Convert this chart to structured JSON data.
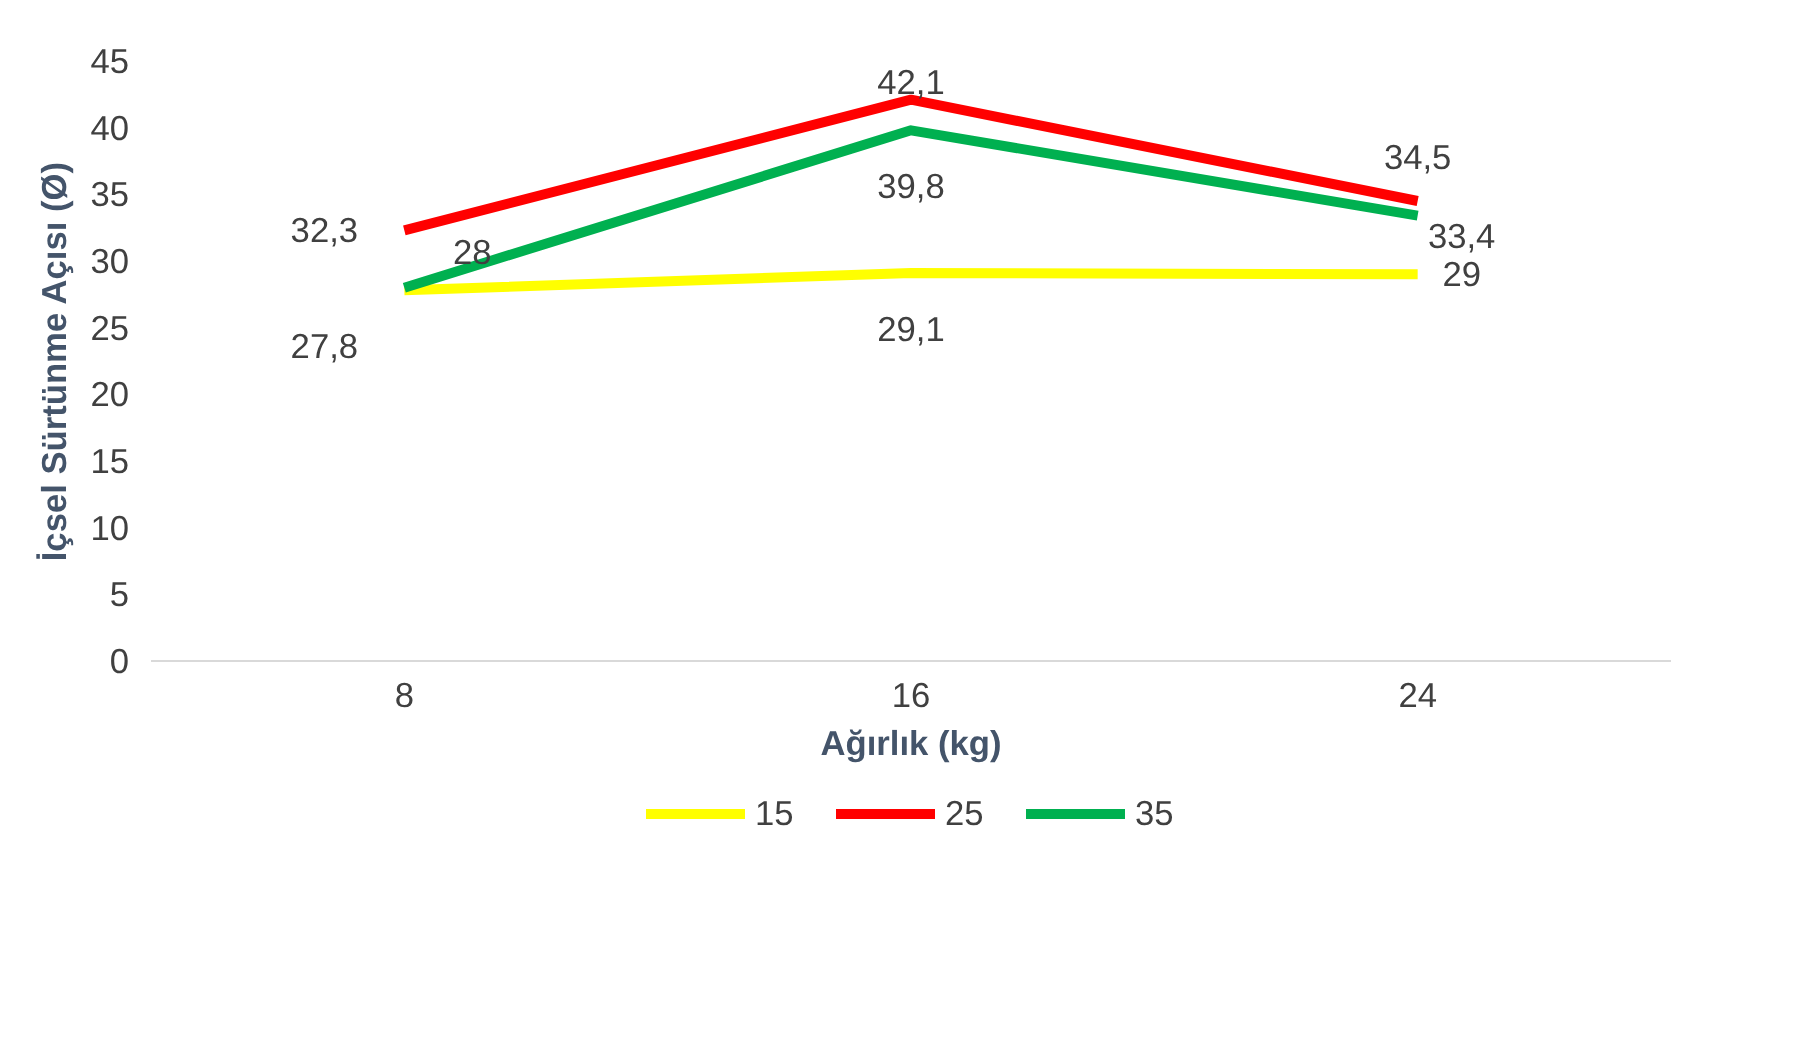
{
  "chart_data": {
    "type": "line",
    "xlabel": "Ağırlık (kg)",
    "ylabel": "İçsel Sürtünme Açısı (Ø)",
    "categories": [
      "8",
      "16",
      "24"
    ],
    "ylim": [
      0,
      45
    ],
    "yticks": [
      0,
      5,
      10,
      15,
      20,
      25,
      30,
      35,
      40,
      45
    ],
    "grid": false,
    "legend": "bottom",
    "marker": "none",
    "line_style": "solid",
    "series": [
      {
        "name": "15",
        "color": "#ffff00",
        "values": [
          27.8,
          29.1,
          29
        ],
        "value_labels": [
          "27,8",
          "29,1",
          "29"
        ]
      },
      {
        "name": "25",
        "color": "#ff0000",
        "values": [
          32.3,
          42.1,
          34.5
        ],
        "value_labels": [
          "32,3",
          "42,1",
          "34,5"
        ]
      },
      {
        "name": "35",
        "color": "#00b050",
        "values": [
          28,
          39.8,
          33.4
        ],
        "value_labels": [
          "28",
          "39,8",
          "33,4"
        ]
      }
    ]
  }
}
